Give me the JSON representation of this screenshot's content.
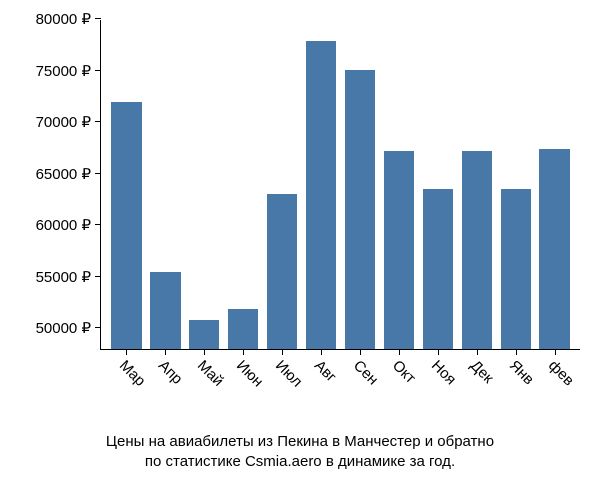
{
  "chart": {
    "type": "bar",
    "background_color": "#ffffff",
    "bar_color": "#4878a7",
    "axis_color": "#000000",
    "text_color": "#000000",
    "currency_symbol": "₽",
    "ylim": [
      48000,
      80000
    ],
    "ytick_step": 5000,
    "yticks": [
      50000,
      55000,
      60000,
      65000,
      70000,
      75000,
      80000
    ],
    "label_fontsize": 15,
    "caption_fontsize": 15,
    "bar_width_ratio": 0.78,
    "categories": [
      "Мар",
      "Апр",
      "Май",
      "Июн",
      "Июл",
      "Авг",
      "Сен",
      "Окт",
      "Ноя",
      "Дек",
      "Янв",
      "фев"
    ],
    "values": [
      72000,
      55500,
      50800,
      51900,
      63100,
      78000,
      75100,
      67300,
      63600,
      67300,
      63600,
      67500
    ],
    "caption_line1": "Цены на авиабилеты из Пекина в Манчестер и обратно",
    "caption_line2": "по статистике Csmia.aero в динамике за год."
  }
}
